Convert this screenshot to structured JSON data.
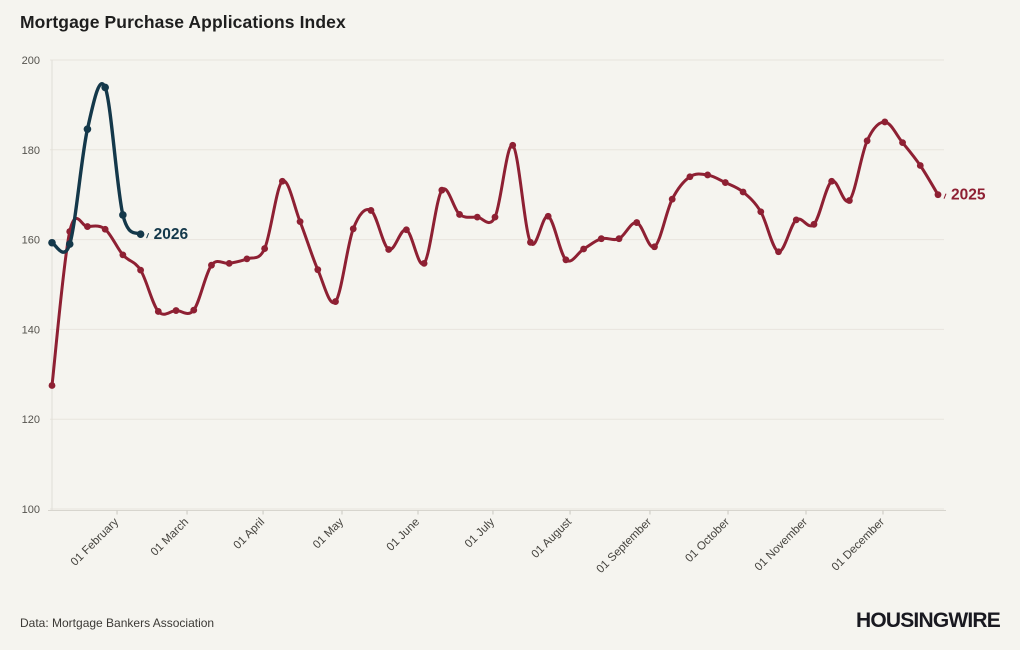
{
  "page": {
    "title": "Mortgage Purchase Applications Index",
    "source": "Data: Mortgage Bankers Association",
    "brand": "HOUSINGWIRE",
    "background": "#f5f4ef"
  },
  "chart_data": {
    "type": "line",
    "title": "Mortgage Purchase Applications Index",
    "xlabel": "",
    "ylabel": "",
    "ylim": [
      100,
      200
    ],
    "yticks": [
      100,
      120,
      140,
      160,
      180,
      200
    ],
    "grid": "horizontal",
    "legend": "inline-end-labels",
    "x_axis": {
      "unit": "weekly",
      "month_ticks": [
        {
          "label": "01 February",
          "pos": 0.0734
        },
        {
          "label": "01 March",
          "pos": 0.1524
        },
        {
          "label": "01 April",
          "pos": 0.2382
        },
        {
          "label": "01 May",
          "pos": 0.3273
        },
        {
          "label": "01 June",
          "pos": 0.4131
        },
        {
          "label": "01 July",
          "pos": 0.4977
        },
        {
          "label": "01 August",
          "pos": 0.5847
        },
        {
          "label": "01 September",
          "pos": 0.6749
        },
        {
          "label": "01 October",
          "pos": 0.763
        },
        {
          "label": "01 November",
          "pos": 0.851
        },
        {
          "label": "01 December",
          "pos": 0.9379
        }
      ]
    },
    "series": [
      {
        "name": "2025",
        "label": "2025",
        "color": "#8e2033",
        "line_width": 3,
        "marker_radius": 3.4,
        "values": [
          127.5,
          161.8,
          162.9,
          162.3,
          156.6,
          153.2,
          144.0,
          144.2,
          144.3,
          154.3,
          154.7,
          155.7,
          158.0,
          173.0,
          164.0,
          153.3,
          146.2,
          162.4,
          166.5,
          157.8,
          162.2,
          154.7,
          171.0,
          165.6,
          165.0,
          165.0,
          181.0,
          159.4,
          165.2,
          155.5,
          157.9,
          160.2,
          160.2,
          163.8,
          158.4,
          169.0,
          174.0,
          174.4,
          172.7,
          170.6,
          166.2,
          157.3,
          164.4,
          163.4,
          173.0,
          168.7,
          182.0,
          186.2,
          181.6,
          176.5,
          170.0
        ]
      },
      {
        "name": "2026",
        "label": "2026",
        "color": "#14384a",
        "line_width": 3.4,
        "marker_radius": 3.8,
        "values": [
          159.3,
          159.0,
          184.6,
          193.9,
          165.5,
          161.2
        ]
      }
    ]
  }
}
